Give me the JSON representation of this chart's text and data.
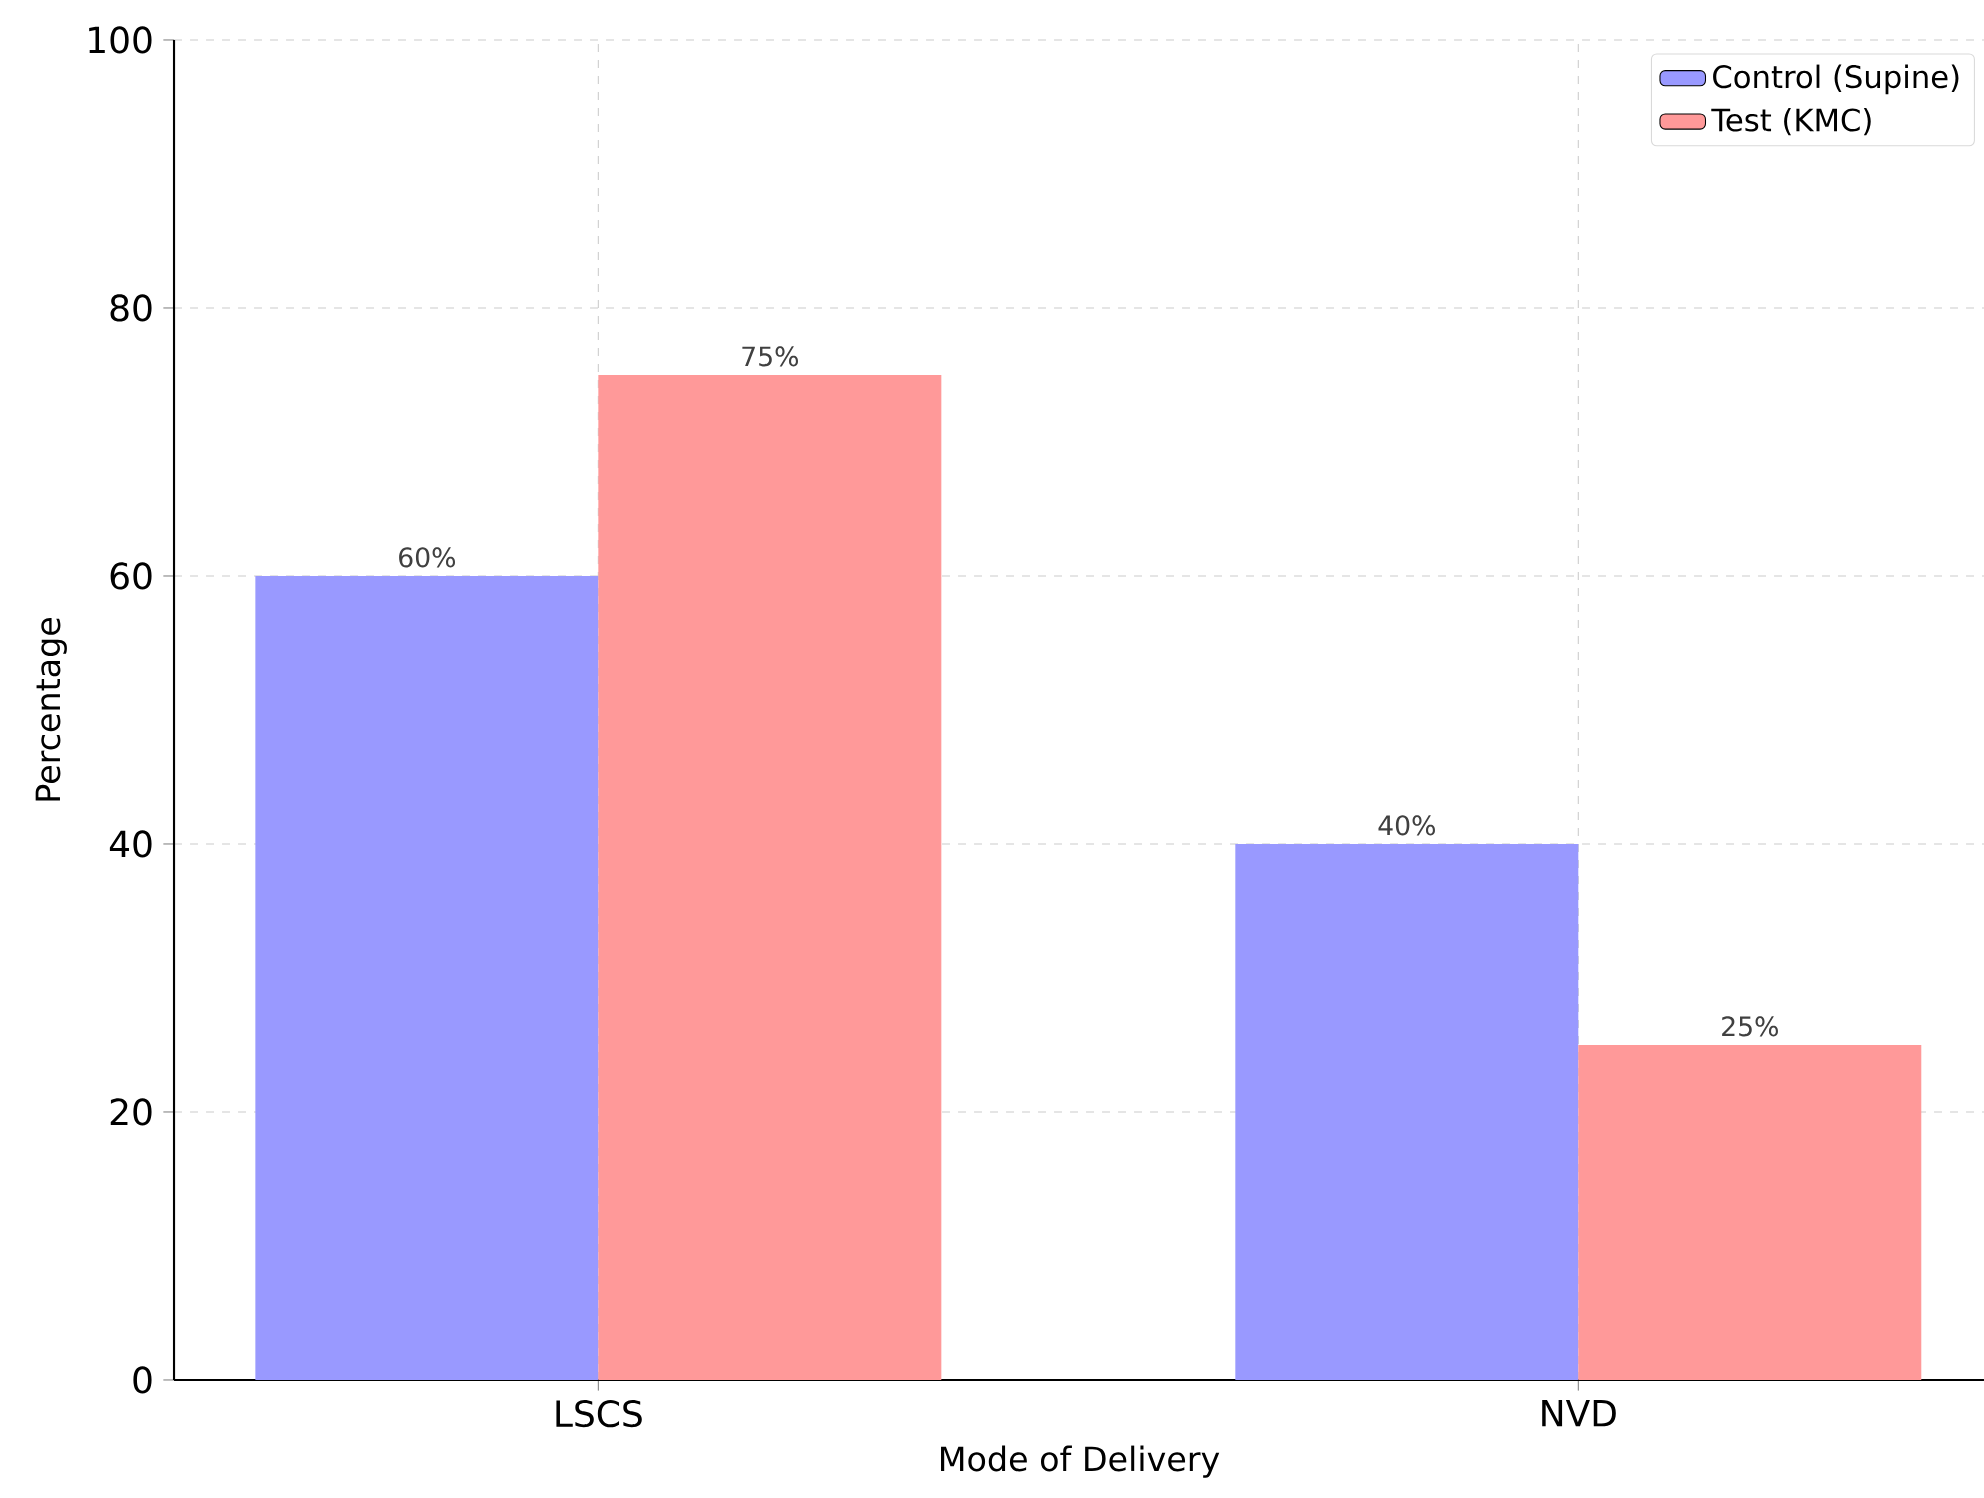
{
  "chart_data": {
    "type": "bar",
    "xlabel": "Mode of Delivery",
    "ylabel": "Percentage",
    "categories": [
      "LSCS",
      "NVD"
    ],
    "series": [
      {
        "name": "Control (Supine)",
        "color": "#9999ff",
        "values": [
          60,
          40
        ],
        "value_labels": [
          "60%",
          "40%"
        ]
      },
      {
        "name": "Test (KMC)",
        "color": "#ff9999",
        "values": [
          75,
          25
        ],
        "value_labels": [
          "75%",
          "25%"
        ]
      }
    ],
    "ylim": [
      0,
      100
    ],
    "yticks": [
      0,
      20,
      40,
      60,
      80,
      100
    ],
    "grid": true,
    "legend": "top right"
  }
}
